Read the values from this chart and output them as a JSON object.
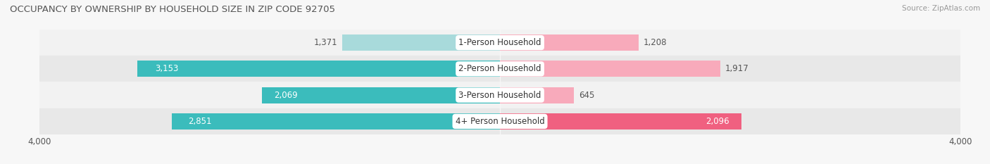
{
  "title": "OCCUPANCY BY OWNERSHIP BY HOUSEHOLD SIZE IN ZIP CODE 92705",
  "source": "Source: ZipAtlas.com",
  "categories": [
    "1-Person Household",
    "2-Person Household",
    "3-Person Household",
    "4+ Person Household"
  ],
  "owner_values": [
    1371,
    3153,
    2069,
    2851
  ],
  "renter_values": [
    1208,
    1917,
    645,
    2096
  ],
  "max_val": 4000,
  "owner_color_dark": "#3BBCBC",
  "owner_color_light": "#A8DADB",
  "renter_color_dark": "#F06080",
  "renter_color_light": "#F8AABB",
  "bg_color": "#F7F7F7",
  "row_colors": [
    "#F2F2F2",
    "#E8E8E8",
    "#F2F2F2",
    "#E8E8E8"
  ],
  "label_fontsize": 8.5,
  "title_fontsize": 9.5,
  "bar_height": 0.62,
  "dark_threshold": 2000
}
